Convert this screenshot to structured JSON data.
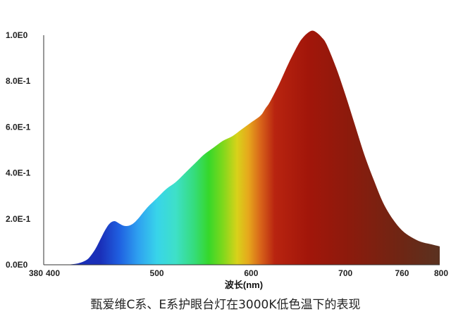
{
  "chart_data": {
    "type": "area",
    "xlabel": "波长(nm)",
    "caption": "甄爱维C系、E系护眼台灯在3000K低色温下的表现",
    "xlim": [
      380,
      800
    ],
    "ylim": [
      0,
      1.0
    ],
    "x_ticks": [
      {
        "value": 380,
        "label": "380"
      },
      {
        "value": 400,
        "label": "400"
      },
      {
        "value": 500,
        "label": "500"
      },
      {
        "value": 600,
        "label": "600"
      },
      {
        "value": 700,
        "label": "700"
      },
      {
        "value": 760,
        "label": "760"
      },
      {
        "value": 800,
        "label": "800"
      }
    ],
    "y_ticks": [
      {
        "value": 0.0,
        "label": "0.0E0"
      },
      {
        "value": 0.2,
        "label": "2.0E-1"
      },
      {
        "value": 0.4,
        "label": "4.0E-1"
      },
      {
        "value": 0.6,
        "label": "6.0E-1"
      },
      {
        "value": 0.8,
        "label": "8.0E-1"
      },
      {
        "value": 1.0,
        "label": "1.0E0"
      }
    ],
    "series": [
      {
        "x": [
          380,
          400,
          415,
          425,
          430,
          435,
          440,
          445,
          450,
          455,
          460,
          465,
          470,
          475,
          480,
          490,
          500,
          510,
          520,
          530,
          540,
          550,
          560,
          570,
          580,
          590,
          600,
          610,
          615,
          620,
          630,
          640,
          650,
          655,
          660,
          665,
          670,
          675,
          680,
          690,
          700,
          710,
          720,
          730,
          740,
          750,
          760,
          770,
          780,
          790,
          800
        ],
        "y": [
          0.0,
          0.0,
          0.005,
          0.02,
          0.04,
          0.07,
          0.11,
          0.15,
          0.18,
          0.19,
          0.18,
          0.17,
          0.17,
          0.18,
          0.2,
          0.25,
          0.29,
          0.33,
          0.36,
          0.4,
          0.44,
          0.48,
          0.51,
          0.54,
          0.56,
          0.59,
          0.62,
          0.65,
          0.68,
          0.71,
          0.79,
          0.88,
          0.96,
          0.99,
          1.01,
          1.02,
          1.01,
          0.99,
          0.96,
          0.86,
          0.74,
          0.61,
          0.48,
          0.37,
          0.27,
          0.2,
          0.15,
          0.12,
          0.1,
          0.09,
          0.08
        ]
      }
    ],
    "gradient_colors": [
      {
        "x": 440,
        "color": "#1a2fb8"
      },
      {
        "x": 460,
        "color": "#1f5fe0"
      },
      {
        "x": 480,
        "color": "#2ea0f0"
      },
      {
        "x": 500,
        "color": "#38d4ea"
      },
      {
        "x": 520,
        "color": "#3ee0c8"
      },
      {
        "x": 540,
        "color": "#35dc7a"
      },
      {
        "x": 555,
        "color": "#36d82a"
      },
      {
        "x": 570,
        "color": "#7ed81c"
      },
      {
        "x": 585,
        "color": "#d8d21a"
      },
      {
        "x": 597,
        "color": "#e6a81c"
      },
      {
        "x": 610,
        "color": "#d8641a"
      },
      {
        "x": 625,
        "color": "#b82410"
      },
      {
        "x": 660,
        "color": "#a2160a"
      },
      {
        "x": 700,
        "color": "#8e1a0c"
      },
      {
        "x": 760,
        "color": "#6e2614"
      },
      {
        "x": 800,
        "color": "#5a3220"
      }
    ]
  }
}
